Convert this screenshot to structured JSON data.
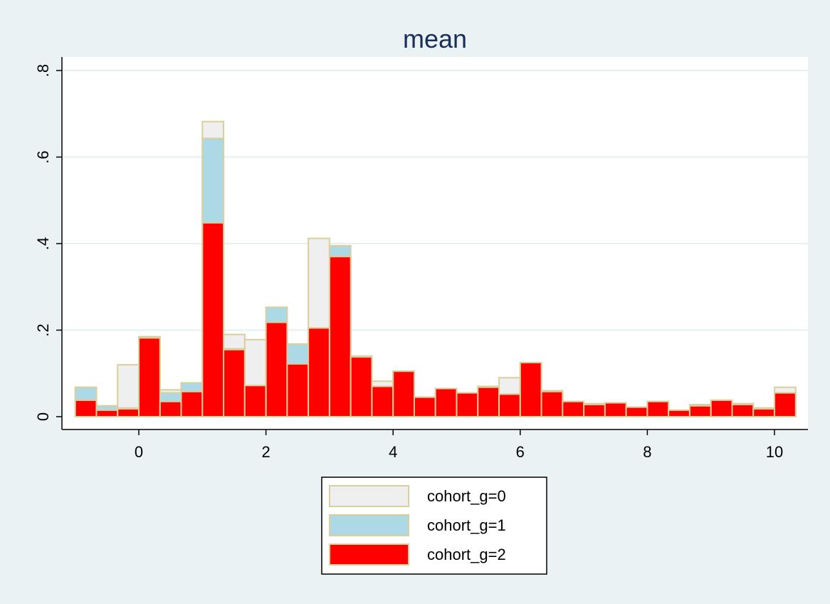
{
  "chart_data": {
    "type": "bar",
    "title": "mean",
    "xlabel": "",
    "ylabel": "",
    "xlim": [
      -1.2,
      10.5
    ],
    "ylim": [
      0,
      0.82
    ],
    "x_ticks": [
      0,
      2,
      4,
      6,
      8,
      10
    ],
    "x_tick_labels": [
      "0",
      "2",
      "4",
      "6",
      "8",
      "10"
    ],
    "y_ticks": [
      0,
      0.2,
      0.4,
      0.6,
      0.8
    ],
    "y_tick_labels": [
      "0",
      ".2",
      ".4",
      ".6",
      ".8"
    ],
    "grid": true,
    "bar_width": 0.333,
    "bar_outline_color": "#d9cf9c",
    "legend_position": "bottom",
    "x": [
      -0.833,
      -0.5,
      -0.167,
      0.167,
      0.5,
      0.833,
      1.167,
      1.5,
      1.833,
      2.167,
      2.5,
      2.833,
      3.167,
      3.5,
      3.833,
      4.167,
      4.5,
      4.833,
      5.167,
      5.5,
      5.833,
      6.167,
      6.5,
      6.833,
      7.167,
      7.5,
      7.833,
      8.167,
      8.5,
      8.833,
      9.167,
      9.5,
      9.833,
      10.167
    ],
    "series": [
      {
        "name": "cohort_g=0",
        "color": "#efefef",
        "values": [
          0.068,
          0.025,
          0.12,
          0.185,
          0.062,
          0.078,
          0.682,
          0.19,
          0.178,
          0.2,
          0.12,
          0.412,
          0.37,
          0.14,
          0.082,
          0.105,
          0.045,
          0.065,
          0.055,
          0.07,
          0.09,
          0.125,
          0.06,
          0.035,
          0.03,
          0.032,
          0.022,
          0.035,
          0.015,
          0.028,
          0.038,
          0.03,
          0.02,
          0.068
        ]
      },
      {
        "name": "cohort_g=1",
        "color": "#add8e6",
        "values": [
          0.068,
          0.025,
          0.02,
          0.18,
          0.055,
          0.078,
          0.643,
          0.157,
          0.072,
          0.253,
          0.168,
          0.2,
          0.395,
          0.14,
          0.07,
          0.105,
          0.045,
          0.065,
          0.055,
          0.07,
          0.052,
          0.125,
          0.06,
          0.035,
          0.03,
          0.032,
          0.022,
          0.035,
          0.015,
          0.025,
          0.038,
          0.03,
          0.02,
          0.055
        ]
      },
      {
        "name": "cohort_g=2",
        "color": "#ff0000",
        "values": [
          0.038,
          0.015,
          0.018,
          0.182,
          0.035,
          0.058,
          0.448,
          0.155,
          0.072,
          0.218,
          0.122,
          0.205,
          0.37,
          0.138,
          0.07,
          0.105,
          0.045,
          0.065,
          0.055,
          0.068,
          0.052,
          0.125,
          0.058,
          0.035,
          0.028,
          0.032,
          0.022,
          0.035,
          0.015,
          0.025,
          0.038,
          0.028,
          0.018,
          0.055
        ]
      }
    ]
  }
}
